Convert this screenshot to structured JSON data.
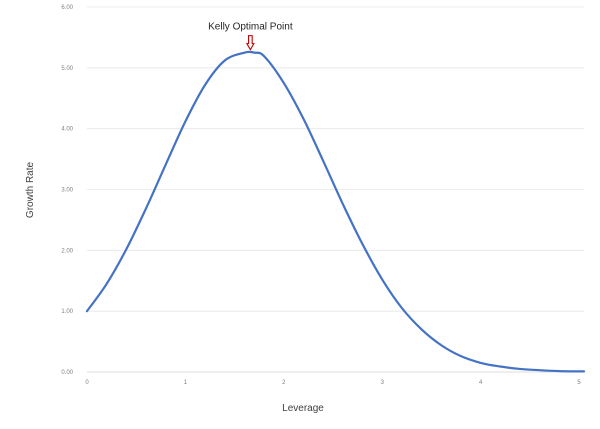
{
  "chart_data": {
    "type": "line",
    "title": "",
    "xlabel": "Leverage",
    "ylabel": "Growth Rate",
    "xlim": [
      0,
      5.05
    ],
    "ylim": [
      0,
      6
    ],
    "grid": true,
    "xticks": [
      0,
      1,
      2,
      3,
      4,
      5
    ],
    "yticks": [
      0,
      1,
      2,
      3,
      4,
      5,
      6
    ],
    "ytick_labels": [
      "0.00",
      "1.00",
      "2.00",
      "3.00",
      "4.00",
      "5.00",
      "6.00"
    ],
    "series": [
      {
        "color": "#4472c4",
        "x": [
          0,
          0.2,
          0.4,
          0.6,
          0.8,
          1.0,
          1.2,
          1.4,
          1.6,
          1.7,
          1.8,
          2.0,
          2.2,
          2.4,
          2.6,
          2.8,
          3.0,
          3.2,
          3.4,
          3.6,
          3.8,
          4.0,
          4.2,
          4.4,
          4.6,
          4.8,
          5.0,
          5.05
        ],
        "y": [
          1.0,
          1.45,
          2.02,
          2.69,
          3.41,
          4.12,
          4.72,
          5.12,
          5.25,
          5.25,
          5.19,
          4.75,
          4.16,
          3.47,
          2.76,
          2.1,
          1.52,
          1.05,
          0.7,
          0.44,
          0.26,
          0.15,
          0.09,
          0.05,
          0.03,
          0.015,
          0.01,
          0.01
        ]
      }
    ],
    "annotation": {
      "text": "Kelly Optimal Point",
      "x": 1.66,
      "y": 5.25,
      "arrow_color": "#c00000"
    }
  }
}
